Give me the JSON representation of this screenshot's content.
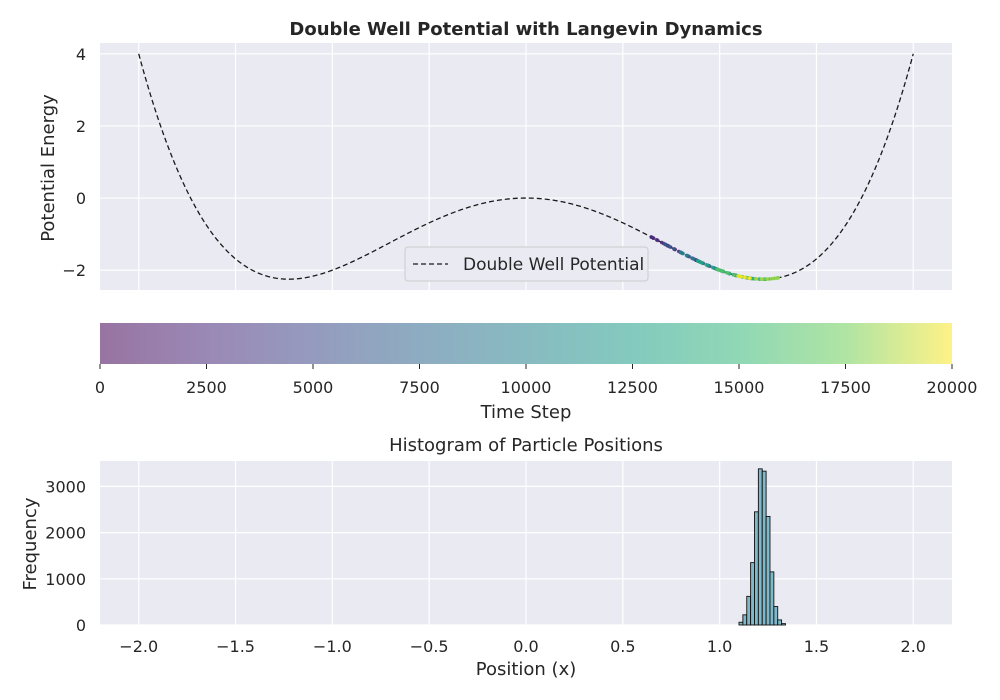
{
  "chart_data": [
    {
      "type": "line",
      "title": "Double Well Potential with Langevin Dynamics",
      "xlabel": "",
      "ylabel": "Potential Energy",
      "xlim": [
        -2.2,
        2.2
      ],
      "ylim": [
        -2.55,
        4.3
      ],
      "x_ticks": [
        -2.0,
        -1.5,
        -1.0,
        -0.5,
        0.0,
        0.5,
        1.0,
        1.5,
        2.0
      ],
      "y_ticks": [
        4,
        2,
        0,
        -2
      ],
      "y_tick_labels": [
        "4",
        "2",
        "0",
        "−2"
      ],
      "grid": true,
      "legend_position": "lower-center",
      "series": [
        {
          "name": "Double Well Potential",
          "style": "dashed",
          "color": "#1a1a1a",
          "function": "x^4 - 3x^2",
          "x_range": [
            -2.0,
            2.0
          ]
        }
      ],
      "scatter_overlay": {
        "description": "particle trajectory colored by time step",
        "x_range": [
          0.6,
          1.35
        ],
        "colormap": "viridis"
      }
    },
    {
      "type": "colorbar",
      "label": "Time Step",
      "range": [
        0,
        20000
      ],
      "ticks": [
        "0",
        "2500",
        "5000",
        "7500",
        "10000",
        "12500",
        "15000",
        "17500",
        "20000"
      ],
      "colormap": "viridis",
      "alpha": 0.55
    },
    {
      "type": "bar",
      "title": "Histogram of Particle Positions",
      "xlabel": "Position (x)",
      "ylabel": "Frequency",
      "xlim": [
        -2.2,
        2.2
      ],
      "ylim": [
        0,
        3550
      ],
      "x_ticks": [
        -2.0,
        -1.5,
        -1.0,
        -0.5,
        0.0,
        0.5,
        1.0,
        1.5,
        2.0
      ],
      "x_tick_labels": [
        "−2.0",
        "−1.5",
        "−1.0",
        "−0.5",
        "0.0",
        "0.5",
        "1.0",
        "1.5",
        "2.0"
      ],
      "y_ticks": [
        0,
        1000,
        2000,
        3000
      ],
      "bar_color": "#7fb8c9",
      "grid": true,
      "bins_x": [
        1.1,
        1.12,
        1.14,
        1.16,
        1.18,
        1.2,
        1.22,
        1.24,
        1.26,
        1.28,
        1.3,
        1.32
      ],
      "bins_width": 0.02,
      "values": [
        60,
        220,
        620,
        1350,
        2450,
        3380,
        3330,
        2350,
        1150,
        400,
        110,
        30
      ]
    }
  ]
}
